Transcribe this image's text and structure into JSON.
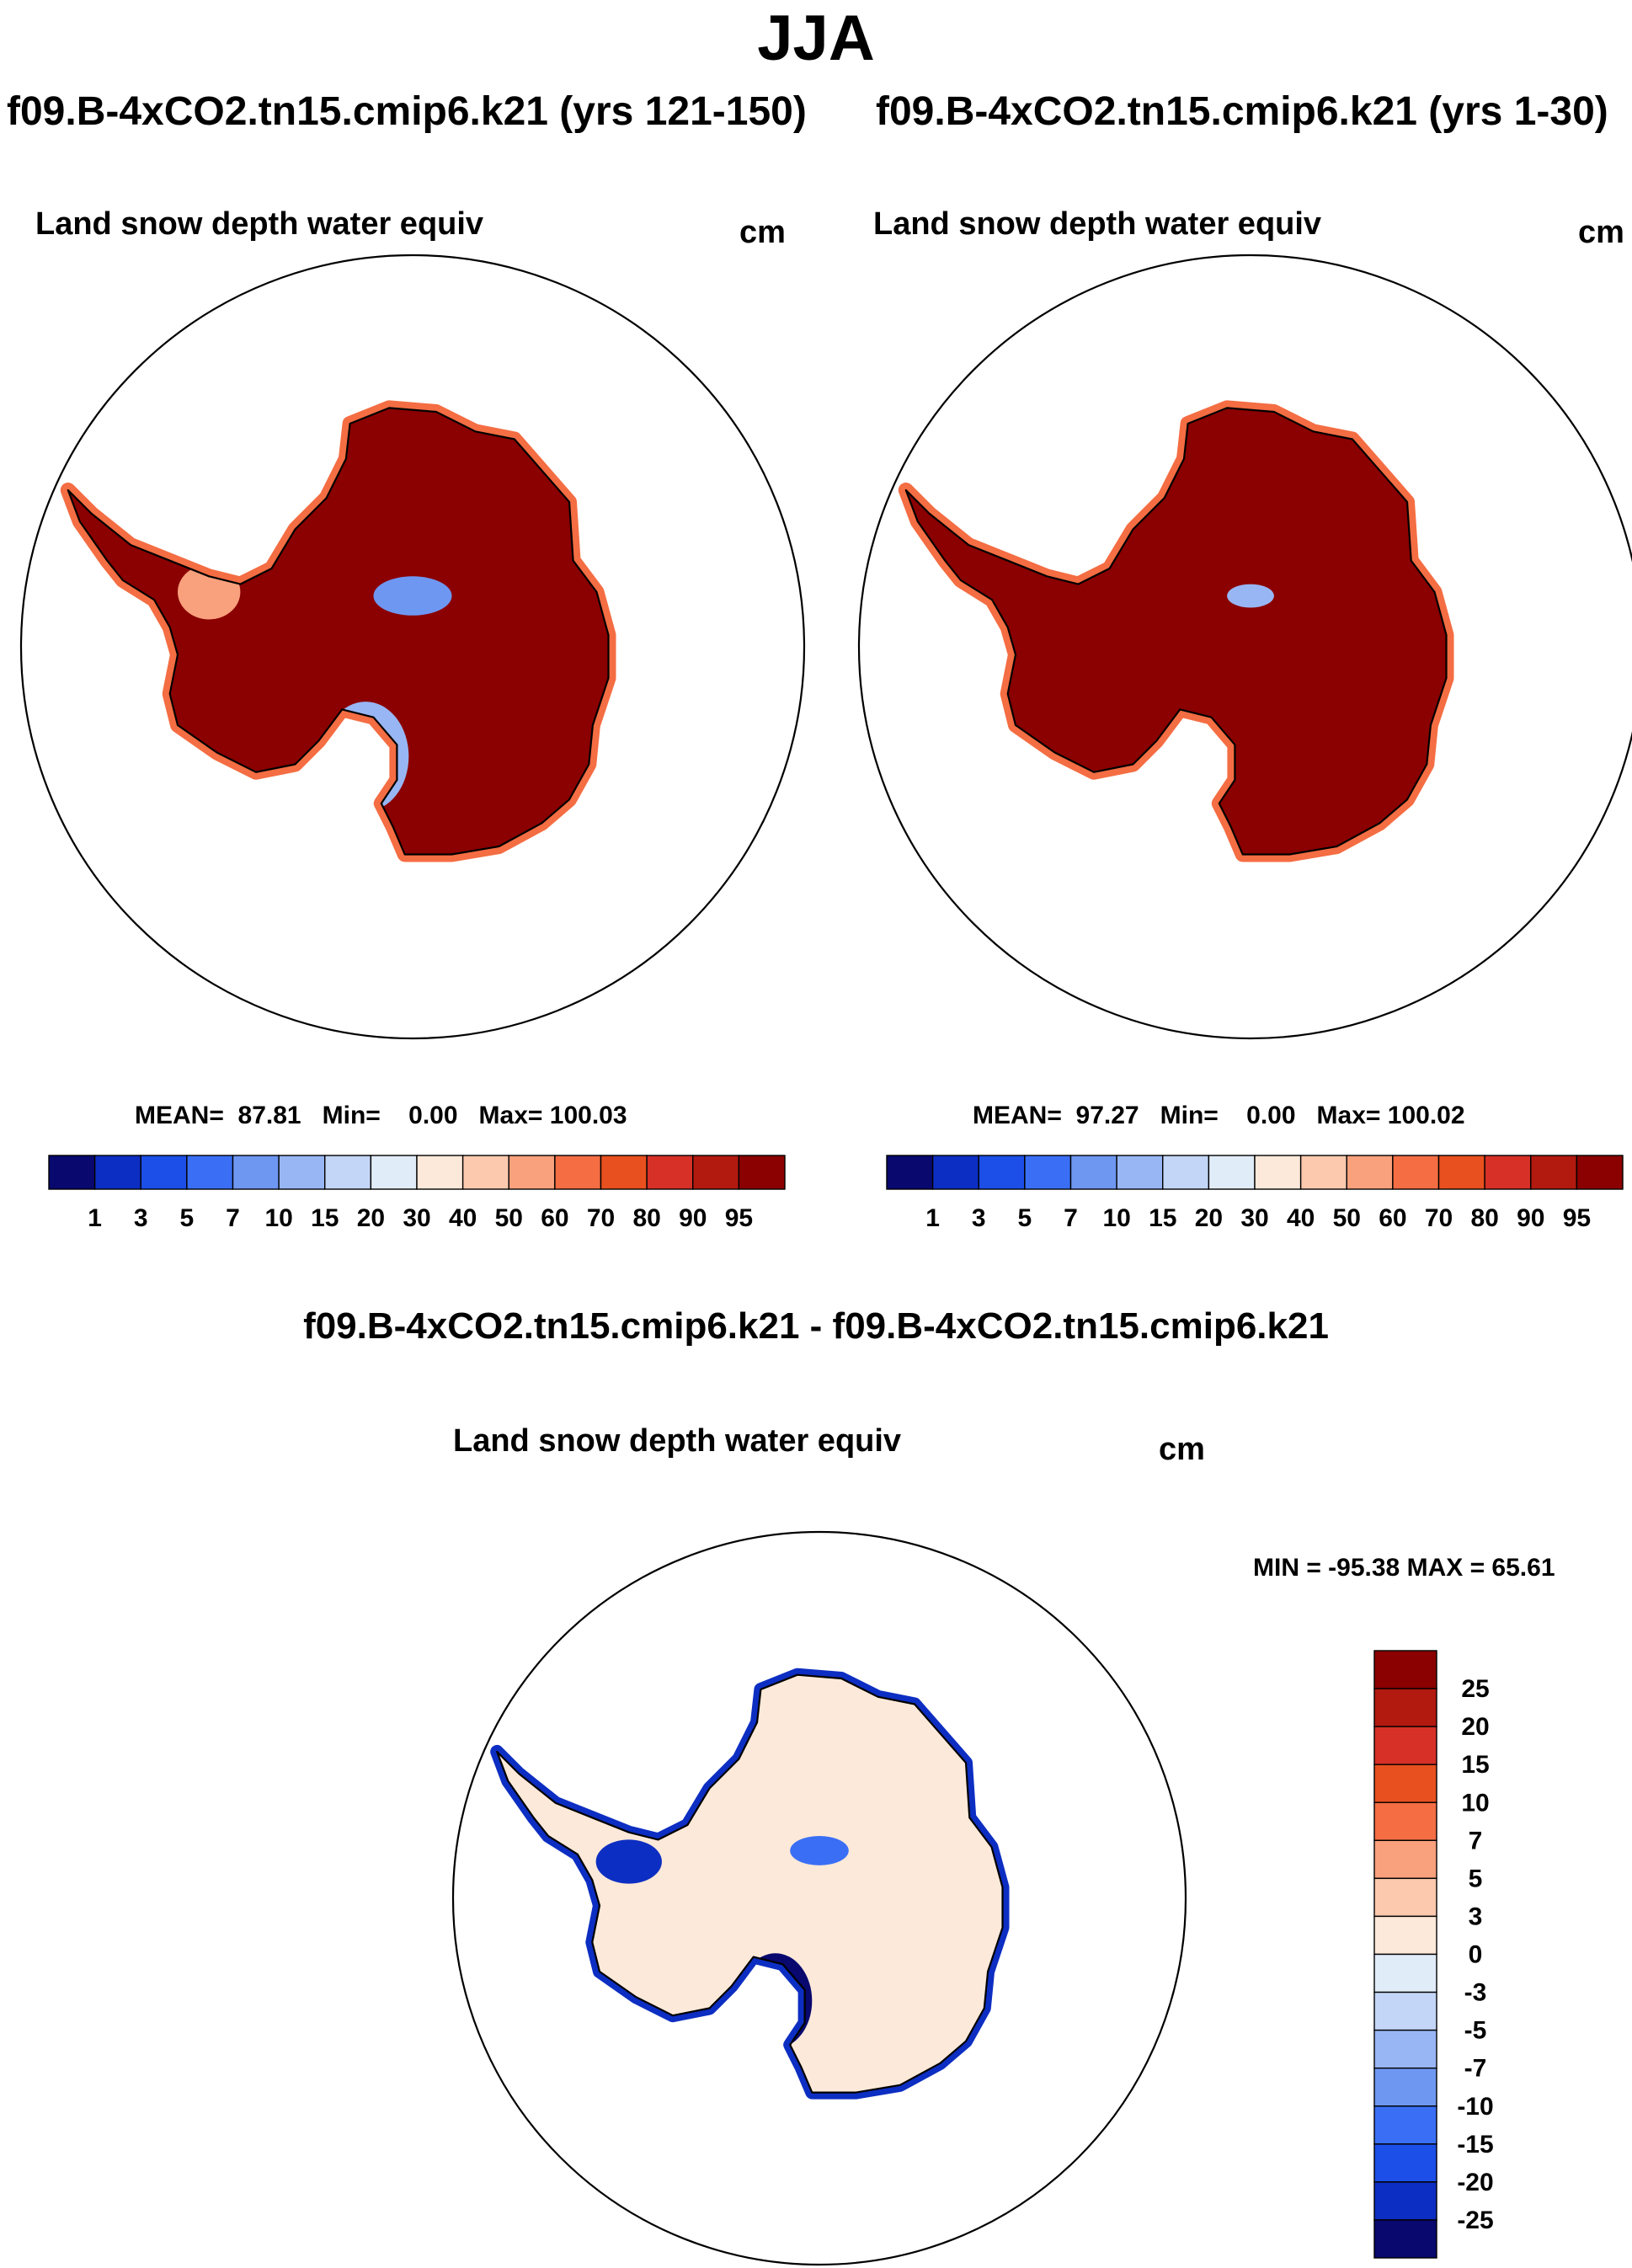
{
  "page_title": "JJA",
  "panels": [
    {
      "case": "f09.B-4xCO2.tn15.cmip6.k21 (yrs 121-150)",
      "variable": "Land snow depth water equiv",
      "units": "cm",
      "mean_label": "MEAN=",
      "mean_value": "87.81",
      "min_label": "Min=",
      "min_value": "0.00",
      "max_label": "Max=",
      "max_value": "100.03"
    },
    {
      "case": "f09.B-4xCO2.tn15.cmip6.k21 (yrs 1-30)",
      "variable": "Land snow depth water equiv",
      "units": "cm",
      "mean_label": "MEAN=",
      "mean_value": "97.27",
      "min_label": "Min=",
      "min_value": "0.00",
      "max_label": "Max=",
      "max_value": "100.02"
    }
  ],
  "diff_panel": {
    "title": "f09.B-4xCO2.tn15.cmip6.k21 - f09.B-4xCO2.tn15.cmip6.k21",
    "variable": "Land snow depth water equiv",
    "units": "cm",
    "minmax_text": "MIN = -95.38 MAX =  65.61"
  },
  "chart_data": [
    {
      "type": "heatmap",
      "projection": "south-polar-stereographic",
      "region": "Antarctica",
      "colorbar_orientation": "horizontal",
      "colorbar_levels": [
        "1",
        "3",
        "5",
        "7",
        "10",
        "15",
        "20",
        "30",
        "40",
        "50",
        "60",
        "70",
        "80",
        "90",
        "95"
      ],
      "colorbar_colors": [
        "#08086e",
        "#0d2ec2",
        "#1c4ee8",
        "#3a6ff5",
        "#6e97f2",
        "#98b6f4",
        "#c4d6f7",
        "#e1ecf9",
        "#fde9d9",
        "#fcc9ae",
        "#f9a07c",
        "#f46d43",
        "#e8501f",
        "#d73027",
        "#b2190f",
        "#8b0000"
      ],
      "dominant_value_band": "95+"
    },
    {
      "type": "heatmap",
      "projection": "south-polar-stereographic",
      "region": "Antarctica",
      "colorbar_orientation": "horizontal",
      "colorbar_levels": [
        "1",
        "3",
        "5",
        "7",
        "10",
        "15",
        "20",
        "30",
        "40",
        "50",
        "60",
        "70",
        "80",
        "90",
        "95"
      ],
      "colorbar_colors": [
        "#08086e",
        "#0d2ec2",
        "#1c4ee8",
        "#3a6ff5",
        "#6e97f2",
        "#98b6f4",
        "#c4d6f7",
        "#e1ecf9",
        "#fde9d9",
        "#fcc9ae",
        "#f9a07c",
        "#f46d43",
        "#e8501f",
        "#d73027",
        "#b2190f",
        "#8b0000"
      ],
      "dominant_value_band": "95+"
    },
    {
      "type": "heatmap",
      "projection": "south-polar-stereographic",
      "region": "Antarctica",
      "colorbar_orientation": "vertical",
      "colorbar_levels": [
        "25",
        "20",
        "15",
        "10",
        "7",
        "5",
        "3",
        "0",
        "-3",
        "-5",
        "-7",
        "-10",
        "-15",
        "-20",
        "-25"
      ],
      "colorbar_colors": [
        "#8b0000",
        "#b2190f",
        "#d73027",
        "#e8501f",
        "#f46d43",
        "#f9a07c",
        "#fcc9ae",
        "#fde9d9",
        "#e1ecf9",
        "#c4d6f7",
        "#98b6f4",
        "#6e97f2",
        "#3a6ff5",
        "#1c4ee8",
        "#0d2ec2",
        "#08086e"
      ],
      "dominant_value_band": "0 to 3"
    }
  ]
}
